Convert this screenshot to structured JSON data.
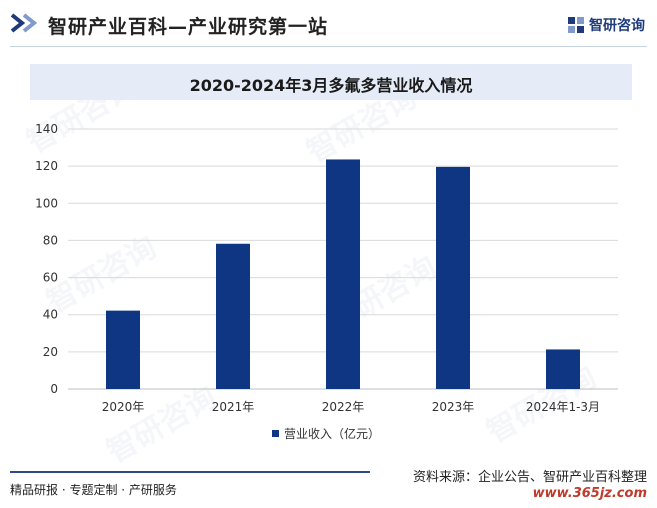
{
  "header": {
    "site_title": "智研产业百科—产业研究第一站",
    "logo_text": "智研咨询"
  },
  "watermark": "智研咨询",
  "chart_data": {
    "type": "bar",
    "title": "2020-2024年3月多氟多营业收入情况",
    "categories": [
      "2020年",
      "2021年",
      "2022年",
      "2023年",
      "2024年1-3月"
    ],
    "series": [
      {
        "name": "营业收入（亿元）",
        "values": [
          42.2,
          78.2,
          123.6,
          119.6,
          21.3
        ],
        "color": "#0e3683"
      }
    ],
    "ylim": [
      0,
      140
    ],
    "yticks": [
      0,
      20,
      40,
      60,
      80,
      100,
      120,
      140
    ],
    "grid": true,
    "legend_position": "bottom"
  },
  "footer": {
    "tagline": "精品研报 · 专题定制 · 产研服务",
    "source": "资料来源：企业公告、智研产业百科整理",
    "website": "www.365jz.com"
  }
}
